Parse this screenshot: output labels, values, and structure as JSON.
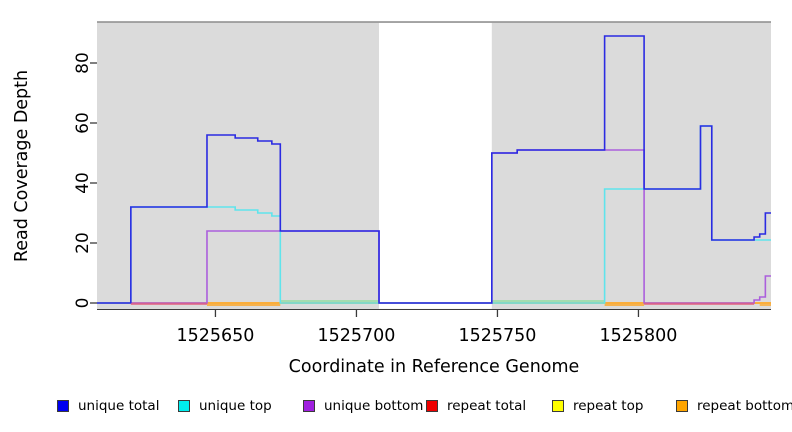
{
  "figure": {
    "background": "#FFFFFF",
    "panel_color": "#DBDBDB",
    "masked_window_color": "#FFFFFF",
    "panel_border_color": "#8C8C8C",
    "axis_color": "#3A3A3A",
    "text_color": "#000000"
  },
  "y_axis": {
    "label": "Read Coverage Depth",
    "ticks": [
      "0",
      "20",
      "40",
      "60",
      "80"
    ]
  },
  "x_axis": {
    "label": "Coordinate in Reference Genome",
    "ticks": [
      "1525650",
      "1525700",
      "1525750",
      "1525800"
    ]
  },
  "legend": {
    "items": [
      {
        "label": "unique total",
        "color": "#0000F0"
      },
      {
        "label": "unique top",
        "color": "#00EEEE"
      },
      {
        "label": "unique bottom",
        "color": "#A020E0"
      },
      {
        "label": "repeat total",
        "color": "#EE0000"
      },
      {
        "label": "repeat top",
        "color": "#FFFF00"
      },
      {
        "label": "repeat bottom",
        "color": "#FFA500"
      }
    ]
  },
  "chart_data": {
    "type": "line",
    "title": "",
    "xlabel": "Coordinate in Reference Genome",
    "ylabel": "Read Coverage Depth",
    "xlim": [
      1525608,
      1525847
    ],
    "ylim": [
      0,
      94
    ],
    "x_ticks": [
      1525650,
      1525700,
      1525750,
      1525800
    ],
    "y_ticks": [
      0,
      20,
      40,
      60,
      80
    ],
    "grid": false,
    "legend_position": "bottom",
    "step_interpolation": "step-after",
    "masked_region": {
      "start": 1525708,
      "end": 1525748,
      "note": "white window over gray panel; all coverage 0 inside"
    },
    "series": [
      {
        "name": "repeat total",
        "color": "#E2617D",
        "points": [
          [
            1525608,
            0
          ],
          [
            1525847,
            0
          ]
        ]
      },
      {
        "name": "repeat top",
        "color": "#F2F27E",
        "points": [
          [
            1525608,
            0
          ],
          [
            1525847,
            0
          ]
        ]
      },
      {
        "name": "repeat bottom",
        "color": "#FFA51E",
        "points": [
          [
            1525608,
            0
          ],
          [
            1525847,
            0
          ]
        ]
      },
      {
        "name": "unique bottom",
        "color": "#AB5FDC",
        "points": [
          [
            1525608,
            0
          ],
          [
            1525647,
            24
          ],
          [
            1525708,
            0
          ],
          [
            1525748,
            50
          ],
          [
            1525757,
            51
          ],
          [
            1525802,
            0
          ],
          [
            1525841,
            1
          ],
          [
            1525843,
            2
          ],
          [
            1525845,
            9
          ]
        ]
      },
      {
        "name": "unique top",
        "color": "#5FE4EC",
        "points": [
          [
            1525608,
            0
          ],
          [
            1525620,
            32
          ],
          [
            1525657,
            31
          ],
          [
            1525665,
            30
          ],
          [
            1525670,
            29
          ],
          [
            1525673,
            0
          ],
          [
            1525788,
            38
          ],
          [
            1525822,
            59
          ],
          [
            1525826,
            21
          ]
        ]
      },
      {
        "name": "unique total",
        "color": "#2B2BE2",
        "points": [
          [
            1525608,
            0
          ],
          [
            1525620,
            32
          ],
          [
            1525647,
            56
          ],
          [
            1525657,
            55
          ],
          [
            1525665,
            54
          ],
          [
            1525670,
            53
          ],
          [
            1525673,
            24
          ],
          [
            1525708,
            0
          ],
          [
            1525748,
            50
          ],
          [
            1525757,
            51
          ],
          [
            1525788,
            89
          ],
          [
            1525802,
            38
          ],
          [
            1525822,
            59
          ],
          [
            1525826,
            21
          ],
          [
            1525841,
            22
          ],
          [
            1525843,
            23
          ],
          [
            1525845,
            30
          ]
        ]
      }
    ],
    "zero_line_visible_segments": [
      {
        "from": 1525620,
        "to": 1525647,
        "color": "#E2617D",
        "offset": 1,
        "series": "repeat total"
      },
      {
        "from": 1525802,
        "to": 1525841,
        "color": "#E2617D",
        "offset": 1,
        "series": "repeat total"
      },
      {
        "from": 1525647,
        "to": 1525673,
        "color": "#FFA51E",
        "offset": 2,
        "series": "repeat bottom"
      },
      {
        "from": 1525788,
        "to": 1525802,
        "color": "#FFA51E",
        "offset": 2,
        "series": "repeat bottom"
      },
      {
        "from": 1525843,
        "to": 1525847,
        "color": "#FFA51E",
        "offset": 2,
        "series": "repeat bottom"
      },
      {
        "from": 1525673,
        "to": 1525708,
        "color": "#93DCA2",
        "offset": -2,
        "series": "unique top + repeat top"
      },
      {
        "from": 1525748,
        "to": 1525788,
        "color": "#93DCA2",
        "offset": -2,
        "series": "unique top + repeat top"
      }
    ]
  }
}
